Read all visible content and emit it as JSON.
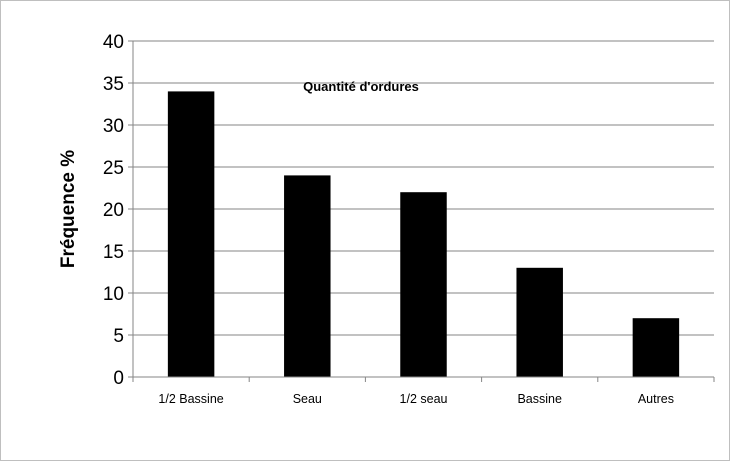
{
  "chart_data": {
    "type": "bar",
    "title": "Quantité d'ordures",
    "xlabel": "",
    "ylabel": "Fréquence %",
    "categories": [
      "1/2 Bassine",
      "Seau",
      "1/2 seau",
      "Bassine",
      "Autres"
    ],
    "values": [
      34,
      24,
      22,
      13,
      7
    ],
    "ylim": [
      0,
      40
    ],
    "yticks": [
      0,
      5,
      10,
      15,
      20,
      25,
      30,
      35,
      40
    ],
    "grid": true,
    "legend": "none",
    "colors": {
      "bar": "#000000",
      "grid": "#868686",
      "axis": "#868686"
    }
  }
}
